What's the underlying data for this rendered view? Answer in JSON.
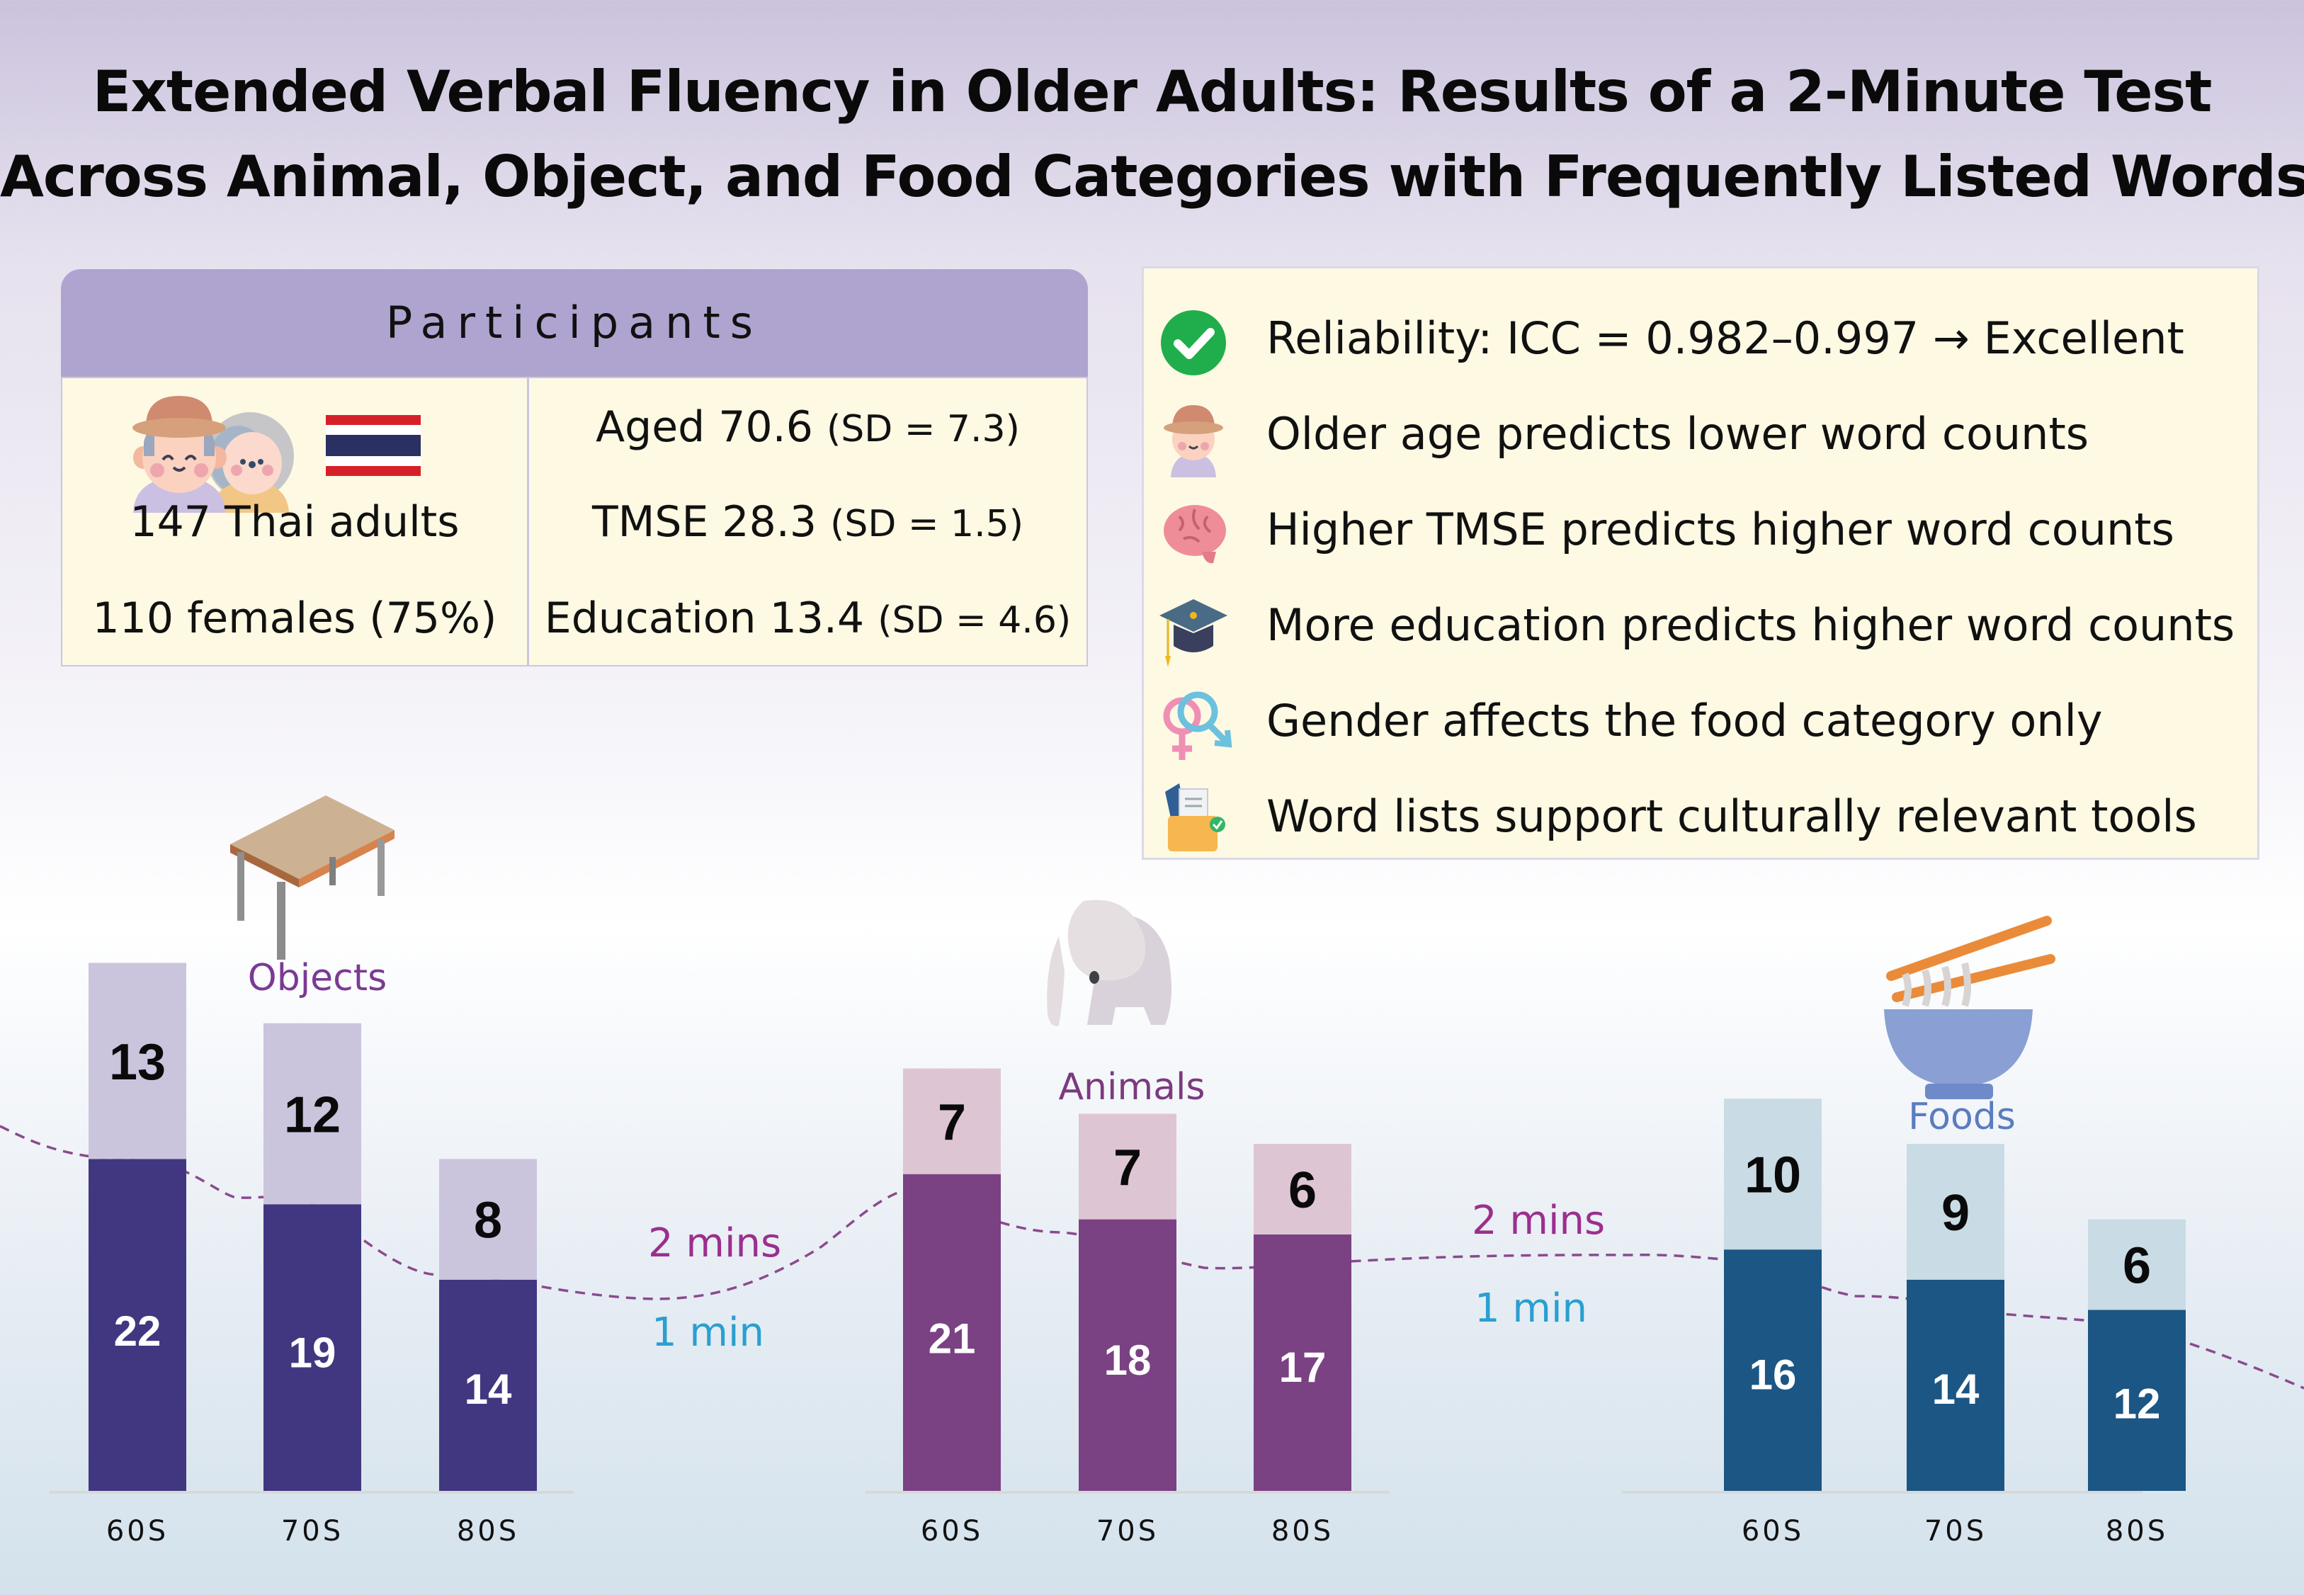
{
  "title": {
    "line1": "Extended Verbal Fluency in Older Adults: Results of a 2-Minute Test",
    "line2": "Across Animal, Object, and Food Categories with Frequently Listed Words"
  },
  "participants": {
    "header": "Participants",
    "icons": [
      "elderly-couple-icon",
      "thailand-flag-icon"
    ],
    "left": {
      "count": "147 Thai adults",
      "females": "110 females (75%)"
    },
    "right": {
      "age_main": "Aged 70.6 ",
      "age_sd": "(SD = 7.3)",
      "tmse_main": "TMSE 28.3 ",
      "tmse_sd": "(SD = 1.5)",
      "edu_main": "Education 13.4 ",
      "edu_sd": "(SD = 4.6)"
    }
  },
  "findings": [
    {
      "icon": "check-circle-icon",
      "text": "Reliability: ICC = 0.982–0.997 → Excellent"
    },
    {
      "icon": "elderly-man-icon",
      "text": "Older age predicts lower word counts"
    },
    {
      "icon": "brain-icon",
      "text": "Higher TMSE predicts higher word counts"
    },
    {
      "icon": "graduation-cap-icon",
      "text": "More education predicts higher word counts"
    },
    {
      "icon": "gender-symbols-icon",
      "text": "Gender affects the food category only"
    },
    {
      "icon": "documents-folder-icon",
      "text": "Word lists support culturally relevant tools"
    }
  ],
  "legend": {
    "two_min": "2 mins",
    "one_min": "1 min",
    "two_min_color": "#9b2f8e",
    "one_min_color": "#2a9fd0"
  },
  "chart_data": [
    {
      "type": "bar",
      "stacked": true,
      "title": "Objects",
      "icon": "table-icon",
      "categories": [
        "60S",
        "70S",
        "80S"
      ],
      "series": [
        {
          "name": "1 min",
          "values": [
            22,
            19,
            14
          ],
          "color": "#413780"
        },
        {
          "name": "2 mins (additional)",
          "values": [
            13,
            12,
            8
          ],
          "color": "#cbc4dd"
        }
      ],
      "title_color": "#7b3a93",
      "xlabel": "",
      "ylabel": "",
      "grid": false
    },
    {
      "type": "bar",
      "stacked": true,
      "title": "Animals",
      "icon": "elephant-icon",
      "categories": [
        "60S",
        "70S",
        "80S"
      ],
      "series": [
        {
          "name": "1 min",
          "values": [
            21,
            18,
            17
          ],
          "color": "#7a4183"
        },
        {
          "name": "2 mins (additional)",
          "values": [
            7,
            7,
            6
          ],
          "color": "#dec5d4"
        }
      ],
      "title_color": "#7b3a7f",
      "xlabel": "",
      "ylabel": "",
      "grid": false
    },
    {
      "type": "bar",
      "stacked": true,
      "title": "Foods",
      "icon": "noodle-bowl-icon",
      "categories": [
        "60S",
        "70S",
        "80S"
      ],
      "series": [
        {
          "name": "1 min",
          "values": [
            16,
            14,
            12
          ],
          "color": "#1b5684"
        },
        {
          "name": "2 mins (additional)",
          "values": [
            10,
            9,
            6
          ],
          "color": "#c9dbe4"
        }
      ],
      "title_color": "#5a7cc0",
      "xlabel": "",
      "ylabel": "",
      "grid": false
    }
  ]
}
